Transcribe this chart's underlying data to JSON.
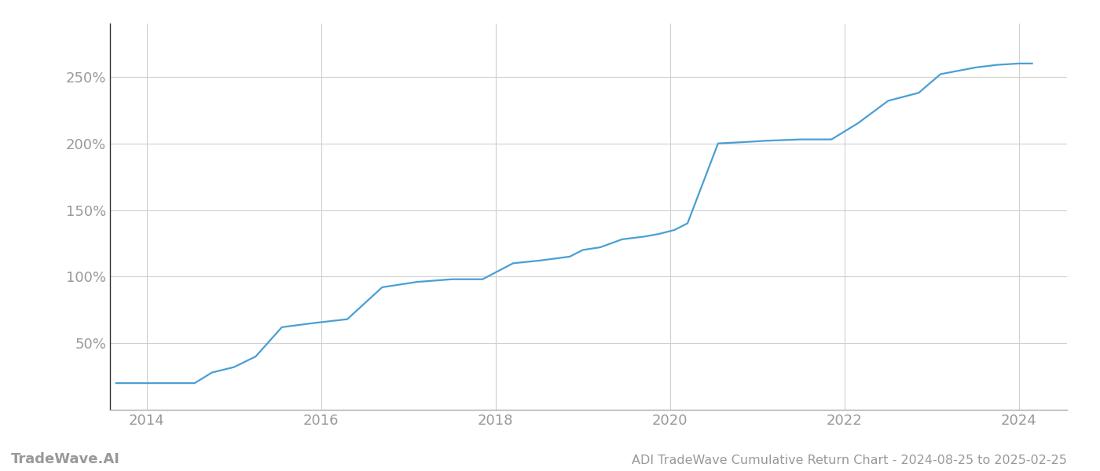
{
  "title": "ADI TradeWave Cumulative Return Chart - 2024-08-25 to 2025-02-25",
  "watermark": "TradeWave.AI",
  "line_color": "#4a9fd4",
  "background_color": "#ffffff",
  "grid_color": "#d0d0d0",
  "x_years": [
    2013.65,
    2014.0,
    2014.55,
    2014.75,
    2015.0,
    2015.25,
    2015.55,
    2015.9,
    2016.3,
    2016.7,
    2017.1,
    2017.5,
    2017.85,
    2018.2,
    2018.5,
    2018.85,
    2019.0,
    2019.2,
    2019.45,
    2019.7,
    2019.87,
    2020.05,
    2020.2,
    2020.55,
    2020.85,
    2021.1,
    2021.5,
    2021.85,
    2022.15,
    2022.5,
    2022.85,
    2023.1,
    2023.5,
    2023.75,
    2024.0,
    2024.15
  ],
  "y_values": [
    20,
    20,
    20,
    28,
    32,
    40,
    62,
    65,
    68,
    92,
    96,
    98,
    98,
    110,
    112,
    115,
    120,
    122,
    128,
    130,
    132,
    135,
    140,
    200,
    201,
    202,
    203,
    203,
    215,
    232,
    238,
    252,
    257,
    259,
    260,
    260
  ],
  "xlim": [
    2013.58,
    2024.55
  ],
  "ylim": [
    0,
    290
  ],
  "yticks": [
    50,
    100,
    150,
    200,
    250
  ],
  "xticks": [
    2014,
    2016,
    2018,
    2020,
    2022,
    2024
  ],
  "tick_label_color": "#999999",
  "tick_fontsize": 13,
  "title_fontsize": 11.5,
  "watermark_fontsize": 13,
  "line_width": 1.6
}
